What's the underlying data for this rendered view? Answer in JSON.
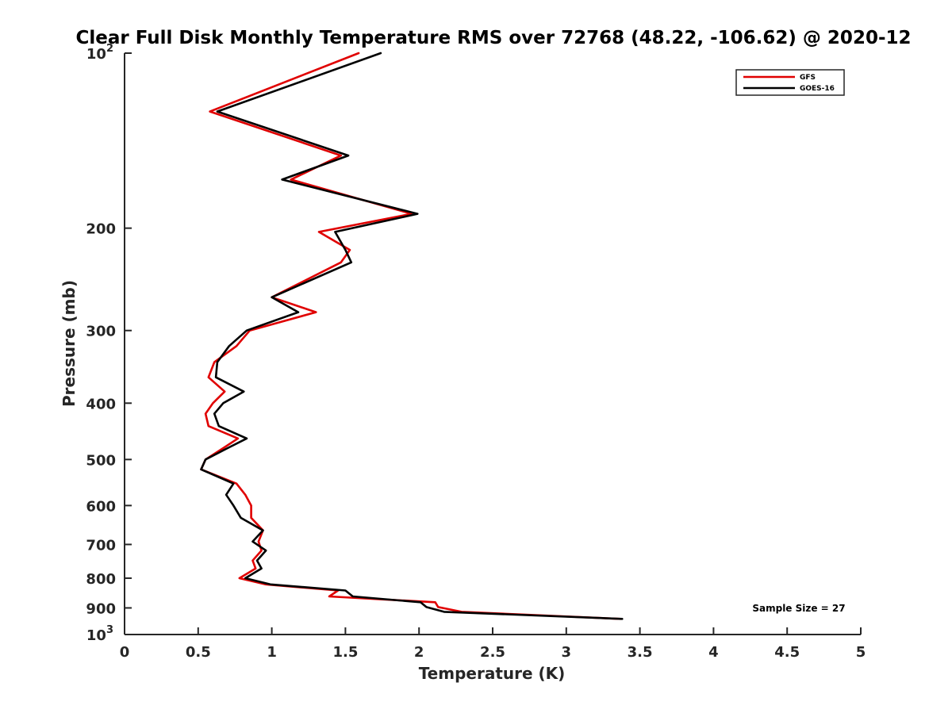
{
  "chart_data": {
    "type": "line",
    "title": "Clear Full Disk Monthly Temperature RMS over 72768 (48.22, -106.62) @ 2020-12",
    "xlabel": "Temperature (K)",
    "ylabel": "Pressure (mb)",
    "xlim": [
      0,
      5
    ],
    "ylim": [
      100,
      1000
    ],
    "y_scale": "log",
    "y_reversed": true,
    "grid": false,
    "legend_position": "top-right",
    "x_ticks": [
      {
        "value": 0,
        "label": "0"
      },
      {
        "value": 0.5,
        "label": "0.5"
      },
      {
        "value": 1,
        "label": "1"
      },
      {
        "value": 1.5,
        "label": "1.5"
      },
      {
        "value": 2,
        "label": "2"
      },
      {
        "value": 2.5,
        "label": "2.5"
      },
      {
        "value": 3,
        "label": "3"
      },
      {
        "value": 3.5,
        "label": "3.5"
      },
      {
        "value": 4,
        "label": "4"
      },
      {
        "value": 4.5,
        "label": "4.5"
      },
      {
        "value": 5,
        "label": "5"
      }
    ],
    "y_ticks": [
      {
        "value": 100,
        "label": "10",
        "sup": "2"
      },
      {
        "value": 200,
        "label": "200"
      },
      {
        "value": 300,
        "label": "300"
      },
      {
        "value": 400,
        "label": "400"
      },
      {
        "value": 500,
        "label": "500"
      },
      {
        "value": 600,
        "label": "600"
      },
      {
        "value": 700,
        "label": "700"
      },
      {
        "value": 800,
        "label": "800"
      },
      {
        "value": 900,
        "label": "900"
      },
      {
        "value": 1000,
        "label": "10",
        "sup": "3"
      }
    ],
    "annotation": "Sample Size = 27",
    "series": [
      {
        "name": "GFS",
        "color": "#e00000",
        "points": [
          [
            1.59,
            100
          ],
          [
            0.58,
            126
          ],
          [
            1.47,
            150
          ],
          [
            1.13,
            165
          ],
          [
            1.95,
            189
          ],
          [
            1.32,
            203
          ],
          [
            1.53,
            218
          ],
          [
            1.47,
            229
          ],
          [
            1.0,
            263
          ],
          [
            1.3,
            279
          ],
          [
            0.85,
            300
          ],
          [
            0.76,
            319
          ],
          [
            0.61,
            340
          ],
          [
            0.57,
            361
          ],
          [
            0.68,
            382
          ],
          [
            0.6,
            400
          ],
          [
            0.55,
            417
          ],
          [
            0.57,
            438
          ],
          [
            0.77,
            460
          ],
          [
            0.67,
            478
          ],
          [
            0.55,
            500
          ],
          [
            0.52,
            520
          ],
          [
            0.76,
            550
          ],
          [
            0.82,
            575
          ],
          [
            0.86,
            600
          ],
          [
            0.86,
            630
          ],
          [
            0.94,
            662
          ],
          [
            0.91,
            692
          ],
          [
            0.93,
            717
          ],
          [
            0.87,
            746
          ],
          [
            0.89,
            770
          ],
          [
            0.78,
            800
          ],
          [
            0.96,
            820
          ],
          [
            1.45,
            840
          ],
          [
            1.39,
            860
          ],
          [
            2.11,
            880
          ],
          [
            2.13,
            897
          ],
          [
            2.29,
            914
          ],
          [
            3.37,
            940
          ]
        ]
      },
      {
        "name": "GOES-16",
        "color": "#000000",
        "points": [
          [
            1.74,
            100
          ],
          [
            0.63,
            126
          ],
          [
            1.52,
            150
          ],
          [
            1.07,
            165
          ],
          [
            1.99,
            189
          ],
          [
            1.43,
            203
          ],
          [
            1.5,
            218
          ],
          [
            1.54,
            229
          ],
          [
            1.0,
            263
          ],
          [
            1.18,
            279
          ],
          [
            0.83,
            300
          ],
          [
            0.71,
            319
          ],
          [
            0.63,
            340
          ],
          [
            0.62,
            361
          ],
          [
            0.81,
            382
          ],
          [
            0.67,
            400
          ],
          [
            0.61,
            417
          ],
          [
            0.64,
            438
          ],
          [
            0.83,
            460
          ],
          [
            0.7,
            478
          ],
          [
            0.55,
            500
          ],
          [
            0.52,
            520
          ],
          [
            0.74,
            550
          ],
          [
            0.69,
            575
          ],
          [
            0.74,
            600
          ],
          [
            0.79,
            630
          ],
          [
            0.94,
            662
          ],
          [
            0.87,
            692
          ],
          [
            0.96,
            717
          ],
          [
            0.9,
            746
          ],
          [
            0.93,
            770
          ],
          [
            0.82,
            800
          ],
          [
            0.99,
            820
          ],
          [
            1.5,
            840
          ],
          [
            1.55,
            860
          ],
          [
            2.01,
            880
          ],
          [
            2.05,
            897
          ],
          [
            2.17,
            914
          ],
          [
            3.38,
            940
          ]
        ]
      }
    ]
  }
}
